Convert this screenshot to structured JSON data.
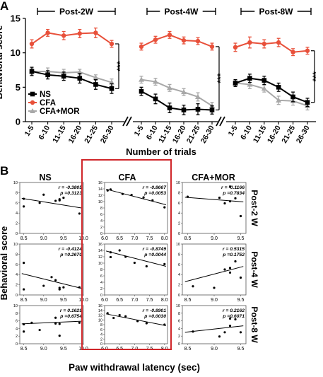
{
  "colors": {
    "ns": "#000000",
    "cfa": "#e8503a",
    "mor": "#a8a8a8",
    "highlight": "#d0262a"
  },
  "panel_labels": {
    "a": "A",
    "b": "B"
  },
  "chart_data": [
    {
      "type": "line",
      "title": "",
      "xlabel": "Number of trials",
      "ylabel": "Behavioral score",
      "ylim": [
        0,
        15
      ],
      "yticks": [
        0,
        5,
        10,
        15
      ],
      "categories": [
        "1-5",
        "6-10",
        "11-15",
        "16-20",
        "21-25",
        "26-30"
      ],
      "legend": {
        "placement": "bottom-left",
        "entries": [
          "NS",
          "CFA",
          "CFA+MOR"
        ]
      },
      "significance": "***",
      "panels": [
        {
          "title": "Post-2W",
          "series": [
            {
              "name": "NS",
              "values": [
                7.3,
                6.8,
                6.6,
                6.3,
                5.4,
                4.8
              ],
              "err": [
                0.6,
                0.6,
                0.6,
                0.7,
                0.7,
                0.7
              ]
            },
            {
              "name": "CFA",
              "values": [
                11.3,
                12.9,
                12.5,
                12.8,
                12.9,
                11.3
              ],
              "err": [
                0.6,
                0.5,
                0.6,
                0.6,
                0.7,
                0.5
              ]
            },
            {
              "name": "CFA+MOR",
              "values": [
                7.3,
                7.3,
                7.1,
                7.2,
                6.4,
                5.7
              ],
              "err": [
                0.4,
                0.5,
                0.5,
                0.4,
                0.4,
                0.5
              ]
            }
          ]
        },
        {
          "title": "Post-4W",
          "series": [
            {
              "name": "NS",
              "values": [
                4.4,
                3.3,
                2.0,
                1.7,
                1.8,
                1.7
              ],
              "err": [
                0.6,
                0.7,
                0.7,
                0.7,
                0.8,
                0.6
              ]
            },
            {
              "name": "CFA",
              "values": [
                10.9,
                11.9,
                12.6,
                11.8,
                11.7,
                10.9
              ],
              "err": [
                0.5,
                0.5,
                0.5,
                0.5,
                0.5,
                0.5
              ]
            },
            {
              "name": "CFA+MOR",
              "values": [
                6.1,
                5.8,
                4.9,
                4.3,
                3.6,
                2.3
              ],
              "err": [
                0.5,
                0.5,
                0.5,
                0.5,
                0.6,
                0.5
              ]
            }
          ]
        },
        {
          "title": "Post-8W",
          "series": [
            {
              "name": "NS",
              "values": [
                5.6,
                6.3,
                6.0,
                5.0,
                3.6,
                2.8
              ],
              "err": [
                0.5,
                0.6,
                0.6,
                0.6,
                0.7,
                0.6
              ]
            },
            {
              "name": "CFA",
              "values": [
                10.8,
                11.5,
                11.3,
                11.5,
                10.1,
                10.3
              ],
              "err": [
                0.6,
                0.8,
                0.6,
                0.6,
                0.5,
                0.5
              ]
            },
            {
              "name": "CFA+MOR",
              "values": [
                5.6,
                5.4,
                4.8,
                3.1,
                3.0,
                2.3
              ],
              "err": [
                0.5,
                0.6,
                0.5,
                0.6,
                0.6,
                0.6
              ]
            }
          ]
        }
      ]
    },
    {
      "type": "scatter",
      "title": "",
      "xlabel": "Paw withdrawal latency (sec)",
      "ylabel": "Behavioral score",
      "highlight_column": "CFA",
      "columns": [
        {
          "title": "NS",
          "xlim": [
            8.4,
            10.0
          ],
          "xticks": [
            "8.5",
            "9.0",
            "9.5",
            "10.0"
          ],
          "ylim": [
            0,
            10
          ],
          "yticks": [
            0,
            2,
            4,
            6,
            8,
            10
          ]
        },
        {
          "title": "CFA",
          "xlim": [
            6.0,
            8.1
          ],
          "xticks": [
            "6.0",
            "6.5",
            "7.0",
            "7.5",
            "8.0"
          ],
          "ylim": [
            0,
            16
          ],
          "yticks": [
            0,
            2,
            4,
            6,
            8,
            10,
            12,
            14,
            16
          ]
        },
        {
          "title": "CFA+MOR",
          "xlim": [
            8.4,
            9.6
          ],
          "xticks": [
            "8.5",
            "9.0",
            "9.5"
          ],
          "ylim": [
            0,
            10
          ],
          "yticks": [
            0,
            2,
            4,
            6,
            8,
            10
          ]
        }
      ],
      "rows": [
        "Post-2 W",
        "Post-4 W",
        "Post-8 W"
      ],
      "panels": [
        {
          "column": "NS",
          "row": "Post-2 W",
          "r": "r = -0.3805",
          "p": "p =0.3123",
          "points": [
            [
              8.5,
              6.8
            ],
            [
              8.5,
              5.3
            ],
            [
              8.9,
              6.0
            ],
            [
              9.0,
              7.6
            ],
            [
              9.3,
              6.4
            ],
            [
              9.4,
              6.7
            ],
            [
              9.4,
              6.5
            ],
            [
              9.5,
              7.0
            ],
            [
              9.9,
              3.9
            ]
          ],
          "fit": [
            [
              8.45,
              6.9
            ],
            [
              9.95,
              5.0
            ]
          ]
        },
        {
          "column": "CFA",
          "row": "Post-2 W",
          "r": "r = -0.8667",
          "p": "p =0.0053",
          "points": [
            [
              6.1,
              13.5
            ],
            [
              6.2,
              13.8
            ],
            [
              6.6,
              12.4
            ],
            [
              6.9,
              12.1
            ],
            [
              7.3,
              11.3
            ],
            [
              7.6,
              10.4
            ],
            [
              8.0,
              8.2
            ]
          ],
          "fit": [
            [
              6.05,
              13.9
            ],
            [
              8.05,
              9.0
            ]
          ]
        },
        {
          "column": "CFA+MOR",
          "row": "Post-2 W",
          "r": "r = -0.1166",
          "p": "p =0.7834",
          "points": [
            [
              8.5,
              7.2
            ],
            [
              9.1,
              7.0
            ],
            [
              9.2,
              5.9
            ],
            [
              9.3,
              9.2
            ],
            [
              9.3,
              6.3
            ],
            [
              9.4,
              6.9
            ],
            [
              9.5,
              3.4
            ]
          ],
          "fit": [
            [
              8.45,
              7.1
            ],
            [
              9.55,
              6.2
            ]
          ]
        },
        {
          "column": "NS",
          "row": "Post-4 W",
          "r": "r = -0.4124",
          "p": "p =0.2670",
          "points": [
            [
              8.5,
              6.3
            ],
            [
              8.5,
              1.1
            ],
            [
              9.0,
              1.8
            ],
            [
              9.2,
              3.5
            ],
            [
              9.3,
              2.9
            ],
            [
              9.4,
              1.1
            ],
            [
              9.4,
              1.4
            ],
            [
              9.5,
              1.5
            ],
            [
              9.9,
              1.5
            ]
          ],
          "fit": [
            [
              8.45,
              4.2
            ],
            [
              9.95,
              1.3
            ]
          ]
        },
        {
          "column": "CFA",
          "row": "Post-4 W",
          "r": "r = -0.8749",
          "p": "p =0.0044",
          "points": [
            [
              6.2,
              13.4
            ],
            [
              6.2,
              11.9
            ],
            [
              6.5,
              14.0
            ],
            [
              6.7,
              12.0
            ],
            [
              7.0,
              10.1
            ],
            [
              7.4,
              9.0
            ],
            [
              8.0,
              9.7
            ]
          ],
          "fit": [
            [
              6.05,
              13.8
            ],
            [
              8.05,
              9.0
            ]
          ]
        },
        {
          "column": "CFA+MOR",
          "row": "Post-4 W",
          "r": "r = 0.5315",
          "p": "p =0.1752",
          "points": [
            [
              8.6,
              1.7
            ],
            [
              9.0,
              1.4
            ],
            [
              9.2,
              5.0
            ],
            [
              9.3,
              4.4
            ],
            [
              9.3,
              5.3
            ],
            [
              9.4,
              6.6
            ],
            [
              9.5,
              3.4
            ]
          ],
          "fit": [
            [
              8.45,
              2.6
            ],
            [
              9.55,
              5.6
            ]
          ]
        },
        {
          "column": "NS",
          "row": "Post-8 W",
          "r": "r = 0.1629",
          "p": "p =0.6754",
          "points": [
            [
              8.5,
              5.1
            ],
            [
              8.5,
              3.2
            ],
            [
              8.7,
              5.5
            ],
            [
              8.9,
              3.6
            ],
            [
              9.3,
              6.8
            ],
            [
              9.3,
              5.3
            ],
            [
              9.4,
              2.1
            ],
            [
              9.4,
              5.2
            ],
            [
              9.9,
              5.5
            ]
          ],
          "fit": [
            [
              8.45,
              5.2
            ],
            [
              9.95,
              5.9
            ]
          ]
        },
        {
          "column": "CFA",
          "row": "Post-8 W",
          "r": "r = -0.8901",
          "p": "p =0.0030",
          "points": [
            [
              6.1,
              12.8
            ],
            [
              6.3,
              10.8
            ],
            [
              6.5,
              12.0
            ],
            [
              6.7,
              11.5
            ],
            [
              7.1,
              9.5
            ],
            [
              7.4,
              8.6
            ],
            [
              8.0,
              8.0
            ]
          ],
          "fit": [
            [
              6.05,
              12.5
            ],
            [
              8.05,
              7.6
            ]
          ]
        },
        {
          "column": "CFA+MOR",
          "row": "Post-8 W",
          "r": "r = 0.2162",
          "p": "p =0.6071",
          "points": [
            [
              8.6,
              3.2
            ],
            [
              9.1,
              1.9
            ],
            [
              9.2,
              3.0
            ],
            [
              9.3,
              6.6
            ],
            [
              9.3,
              4.7
            ],
            [
              9.4,
              6.4
            ],
            [
              9.5,
              3.0
            ]
          ],
          "fit": [
            [
              8.45,
              3.0
            ],
            [
              9.55,
              4.7
            ]
          ]
        }
      ]
    }
  ]
}
